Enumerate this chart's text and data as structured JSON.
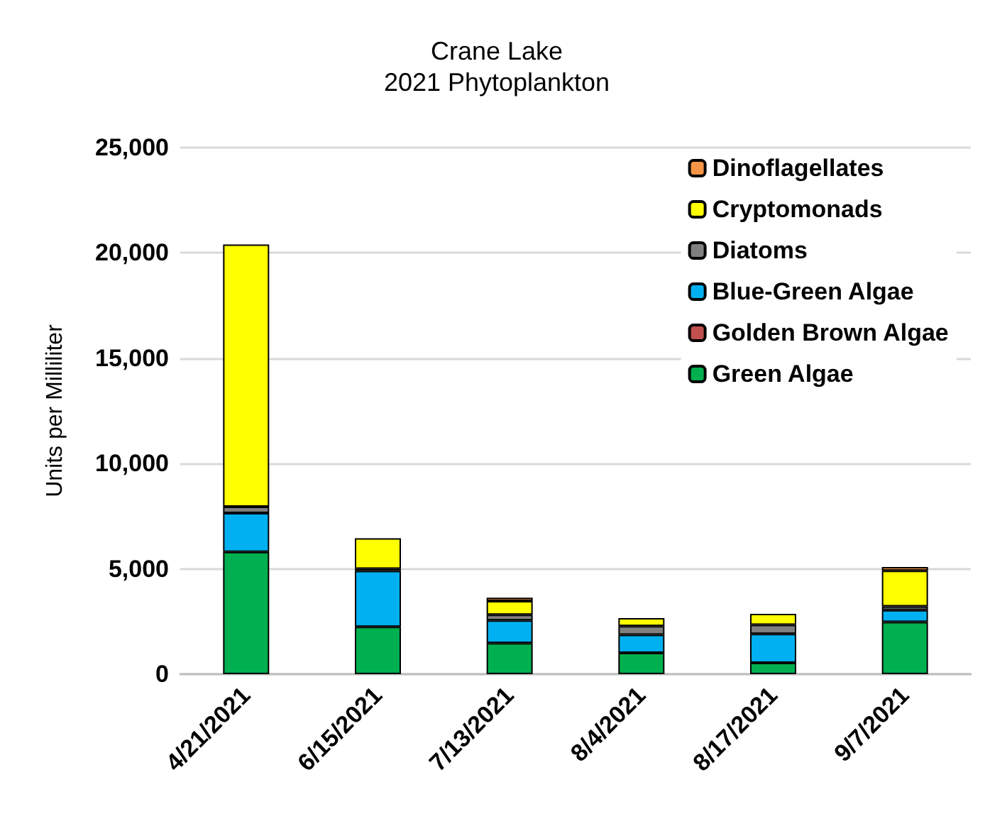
{
  "chart_data": {
    "type": "bar",
    "title": "Crane Lake",
    "subtitle": "2021 Phytoplankton",
    "ylabel": "Units per Milliliter",
    "categories": [
      "4/21/2021",
      "6/15/2021",
      "7/13/2021",
      "8/4/2021",
      "8/17/2021",
      "9/7/2021"
    ],
    "stacked": true,
    "ylim": [
      0,
      25000
    ],
    "yticks": [
      0,
      {
        "value": 5000,
        "label": "5,000"
      },
      {
        "value": 10000,
        "label": "10,000"
      },
      {
        "value": 15000,
        "label": "15,000"
      },
      {
        "value": 20000,
        "label": "20,000"
      },
      {
        "value": 25000,
        "label": "25,000"
      }
    ],
    "grid": "y",
    "legend": "top right",
    "series": [
      {
        "name": "Green Algae",
        "color": "#00b050",
        "values": [
          5800,
          2250,
          1470,
          1010,
          540,
          2480
        ]
      },
      {
        "name": "Golden Brown Algae",
        "color": "#c0504d",
        "values": [
          null,
          null,
          null,
          null,
          null,
          null
        ]
      },
      {
        "name": "Blue-Green Algae",
        "color": "#00b0f0",
        "values": [
          1850,
          2650,
          1080,
          860,
          1370,
          560
        ]
      },
      {
        "name": "Diatoms",
        "color": "#808080",
        "values": [
          300,
          100,
          270,
          410,
          430,
          180
        ]
      },
      {
        "name": "Cryptomonads",
        "color": "#ffff00",
        "values": [
          12450,
          1450,
          650,
          380,
          520,
          1690
        ]
      },
      {
        "name": "Dinoflagellates",
        "color": "#f79646",
        "values": [
          null,
          null,
          160,
          null,
          null,
          180
        ]
      }
    ]
  }
}
